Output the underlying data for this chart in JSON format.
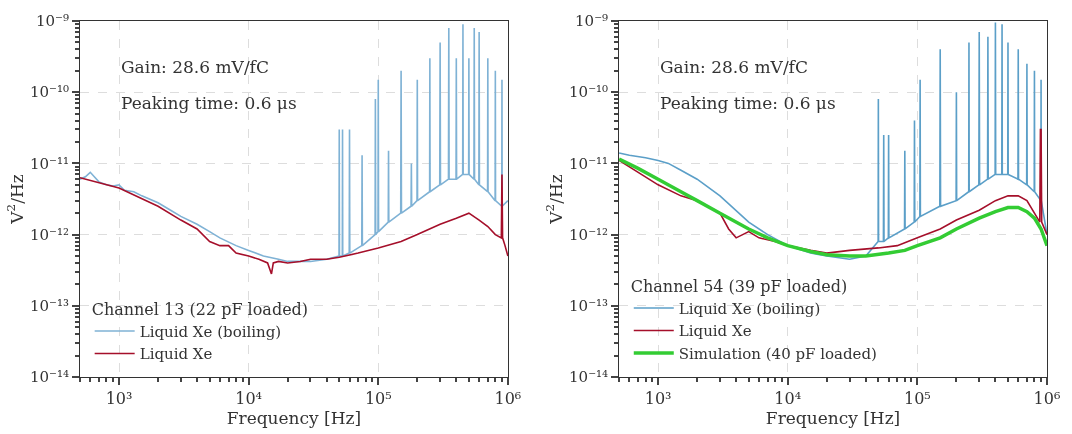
{
  "chart_data": [
    {
      "type": "line",
      "xlabel": "Frequency [Hz]",
      "ylabel": "V$^{2}$/Hz",
      "log": "xy",
      "grid": true,
      "legend": "bottom left",
      "legend_title": "Channel 13 (22 pF loaded)",
      "annotations": [
        "Gain: 28.6 mV/fC",
        "Peaking time: 0.6 μs"
      ],
      "xlim": [
        500,
        1000000
      ],
      "xticks": [
        {
          "value": 1000,
          "label": "10³"
        },
        {
          "value": 10000,
          "label": "10⁴"
        },
        {
          "value": 100000,
          "label": "10⁵"
        },
        {
          "value": 1000000,
          "label": "10⁶"
        }
      ],
      "ylim": [
        1e-14,
        1e-09
      ],
      "yticks": [
        {
          "value": 1e-14,
          "label": "10⁻¹⁴"
        },
        {
          "value": 1e-13,
          "label": "10⁻¹³"
        },
        {
          "value": 1e-12,
          "label": "10⁻¹²"
        },
        {
          "value": 1e-11,
          "label": "10⁻¹¹"
        },
        {
          "value": 1e-10,
          "label": "10⁻¹⁰"
        },
        {
          "value": 1e-09,
          "label": "10⁻⁹"
        }
      ],
      "series": [
        {
          "name": "Liquid Xe (boiling)",
          "color": "#7fb2d5",
          "x": [
            500,
            550,
            600,
            700,
            800,
            900,
            1000,
            1100,
            1300,
            1500,
            2000,
            2500,
            3000,
            4000,
            5000,
            6000,
            8000,
            10000,
            13000,
            17000,
            20000,
            30000,
            40000,
            49800,
            50000,
            50200,
            52800,
            53000,
            53200,
            59700,
            60000,
            60300,
            74600,
            75000,
            75400,
            94500,
            95000,
            95500,
            99500,
            100000,
            100500,
            119400,
            120000,
            120600,
            149000,
            150000,
            151000,
            179000,
            180000,
            181000,
            199000,
            200000,
            201000,
            249000,
            250000,
            251000,
            298000,
            300000,
            302000,
            348000,
            350000,
            352000,
            398000,
            400000,
            402000,
            448000,
            450000,
            452000,
            498000,
            500000,
            502000,
            547000,
            550000,
            553000,
            597000,
            600000,
            603000,
            697000,
            700000,
            703000,
            797000,
            800000,
            803000,
            897000,
            900000,
            903000,
            1000000
          ],
          "values": [
            6e-12,
            6.5e-12,
            7.5e-12,
            5.5e-12,
            5e-12,
            4.8e-12,
            5e-12,
            4.2e-12,
            4e-12,
            3.5e-12,
            2.8e-12,
            2.2e-12,
            1.8e-12,
            1.4e-12,
            1.1e-12,
            9e-13,
            7e-13,
            6e-13,
            5e-13,
            4.5e-13,
            4.2e-13,
            4.2e-13,
            4.5e-13,
            5e-13,
            3e-11,
            5e-13,
            5e-13,
            3e-11,
            5e-13,
            5.5e-13,
            3e-11,
            5.5e-13,
            7e-13,
            1.3e-11,
            7e-13,
            1e-12,
            8e-11,
            1e-12,
            1.1e-12,
            1.5e-10,
            1.1e-12,
            1.5e-12,
            1.5e-11,
            1.5e-12,
            2e-12,
            2e-10,
            2e-12,
            2.5e-12,
            1e-11,
            2.5e-12,
            3e-12,
            1.5e-10,
            3e-12,
            4e-12,
            3e-10,
            4e-12,
            5e-12,
            5e-10,
            5e-12,
            6e-12,
            8e-10,
            6e-12,
            6e-12,
            3e-10,
            6e-12,
            7e-12,
            9e-10,
            7e-12,
            7e-12,
            3e-10,
            7e-12,
            6e-12,
            8e-10,
            6e-12,
            5e-12,
            7e-10,
            5e-12,
            4e-12,
            3e-10,
            4e-12,
            3e-12,
            2e-10,
            3e-12,
            2.5e-12,
            1.5e-10,
            2.5e-12,
            3e-12
          ]
        },
        {
          "name": "Liquid Xe",
          "color": "#a50f2a",
          "x": [
            500,
            1000,
            2000,
            3000,
            4000,
            5000,
            6000,
            7000,
            8000,
            10000,
            12000,
            14000,
            15000,
            15500,
            17000,
            20000,
            25000,
            30000,
            40000,
            50000,
            70000,
            100000,
            150000,
            200000,
            300000,
            400000,
            500000,
            600000,
            700000,
            800000,
            890000,
            900000,
            910000,
            950000,
            1000000
          ],
          "values": [
            6.3e-12,
            4.5e-12,
            2.5e-12,
            1.6e-12,
            1.2e-12,
            8e-13,
            7e-13,
            7e-13,
            5.5e-13,
            5e-13,
            4.5e-13,
            4e-13,
            2.8e-13,
            4e-13,
            4.2e-13,
            4e-13,
            4.2e-13,
            4.5e-13,
            4.5e-13,
            4.8e-13,
            5.5e-13,
            6.5e-13,
            8e-13,
            1e-12,
            1.4e-12,
            1.7e-12,
            2e-12,
            1.6e-12,
            1.3e-12,
            1e-12,
            9e-13,
            7e-12,
            9e-13,
            7e-13,
            5e-13
          ]
        }
      ]
    },
    {
      "type": "line",
      "xlabel": "Frequency [Hz]",
      "ylabel": "V$^{2}$/Hz",
      "log": "xy",
      "grid": true,
      "legend": "bottom left",
      "legend_title": "Channel 54 (39 pF loaded)",
      "annotations": [
        "Gain: 28.6 mV/fC",
        "Peaking time: 0.6 μs"
      ],
      "xlim": [
        500,
        1000000
      ],
      "xticks": [
        {
          "value": 1000,
          "label": "10³"
        },
        {
          "value": 10000,
          "label": "10⁴"
        },
        {
          "value": 100000,
          "label": "10⁵"
        },
        {
          "value": 1000000,
          "label": "10⁶"
        }
      ],
      "ylim": [
        1e-14,
        1e-09
      ],
      "yticks": [
        {
          "value": 1e-14,
          "label": "10⁻¹⁴"
        },
        {
          "value": 1e-13,
          "label": "10⁻¹³"
        },
        {
          "value": 1e-12,
          "label": "10⁻¹²"
        },
        {
          "value": 1e-11,
          "label": "10⁻¹¹"
        },
        {
          "value": 1e-10,
          "label": "10⁻¹⁰"
        },
        {
          "value": 1e-09,
          "label": "10⁻⁹"
        }
      ],
      "series": [
        {
          "name": "Liquid Xe (boiling)",
          "color": "#5b9fc8",
          "x": [
            500,
            600,
            800,
            1000,
            1200,
            1500,
            2000,
            3000,
            5000,
            7000,
            10000,
            15000,
            20000,
            30000,
            40000,
            49800,
            50000,
            50200,
            54700,
            55000,
            55300,
            59700,
            60000,
            60300,
            79600,
            80000,
            80400,
            94500,
            95000,
            95500,
            104500,
            105000,
            105500,
            149000,
            150000,
            151000,
            199000,
            200000,
            201000,
            249000,
            250000,
            251000,
            298000,
            300000,
            302000,
            348000,
            350000,
            352000,
            398000,
            400000,
            402000,
            448000,
            450000,
            452000,
            498000,
            500000,
            502000,
            597000,
            600000,
            603000,
            697000,
            700000,
            703000,
            797000,
            800000,
            803000,
            897000,
            900000,
            903000,
            1000000
          ],
          "values": [
            1.4e-11,
            1.3e-11,
            1.2e-11,
            1.1e-11,
            1e-11,
            8e-12,
            6e-12,
            3.5e-12,
            1.5e-12,
            1e-12,
            7e-13,
            5.5e-13,
            5e-13,
            4.5e-13,
            5e-13,
            8e-13,
            8e-11,
            8e-13,
            8e-13,
            2.5e-11,
            8e-13,
            9e-13,
            2.5e-11,
            9e-13,
            1.2e-12,
            1.5e-11,
            1.2e-12,
            1.5e-12,
            4e-11,
            1.5e-12,
            1.8e-12,
            1.5e-10,
            1.8e-12,
            2.5e-12,
            4e-10,
            2.5e-12,
            3e-12,
            1e-10,
            3e-12,
            4e-12,
            5e-10,
            4e-12,
            5e-12,
            7e-10,
            5e-12,
            6e-12,
            6e-10,
            6e-12,
            7e-12,
            9.5e-10,
            7e-12,
            7e-12,
            9e-10,
            7e-12,
            7e-12,
            5e-10,
            7e-12,
            6e-12,
            4e-10,
            6e-12,
            5e-12,
            2.5e-10,
            5e-12,
            4e-12,
            2e-10,
            4e-12,
            3e-12,
            1.5e-10,
            3e-12,
            1e-12
          ]
        },
        {
          "name": "Liquid Xe",
          "color": "#a50f2a",
          "x": [
            500,
            1000,
            1500,
            2000,
            3000,
            3500,
            4000,
            5000,
            6000,
            8000,
            10000,
            15000,
            20000,
            30000,
            50000,
            70000,
            100000,
            150000,
            200000,
            300000,
            400000,
            500000,
            600000,
            700000,
            800000,
            880000,
            890000,
            900000,
            910000,
            1000000
          ],
          "values": [
            1.1e-11,
            5e-12,
            3.5e-12,
            3e-12,
            2e-12,
            1.2e-12,
            9e-13,
            1.1e-12,
            9e-13,
            8e-13,
            7e-13,
            6e-13,
            5.5e-13,
            6e-13,
            6.5e-13,
            7e-13,
            9e-13,
            1.2e-12,
            1.6e-12,
            2.2e-12,
            3e-12,
            3.5e-12,
            3.5e-12,
            3e-12,
            2e-12,
            1.5e-12,
            3e-11,
            3e-11,
            1.5e-12,
            1e-12
          ]
        },
        {
          "name": "Simulation (40 pF loaded)",
          "color": "#33cc33",
          "x": [
            500,
            700,
            1000,
            1500,
            2000,
            3000,
            5000,
            7000,
            10000,
            15000,
            20000,
            30000,
            40000,
            60000,
            80000,
            100000,
            150000,
            200000,
            300000,
            400000,
            500000,
            600000,
            700000,
            800000,
            900000,
            1000000
          ],
          "values": [
            1.15e-11,
            8.5e-12,
            6e-12,
            4e-12,
            3e-12,
            2e-12,
            1.2e-12,
            9e-13,
            7e-13,
            5.8e-13,
            5.2e-13,
            5e-13,
            5e-13,
            5.5e-13,
            6e-13,
            7e-13,
            9e-13,
            1.2e-12,
            1.7e-12,
            2.1e-12,
            2.4e-12,
            2.4e-12,
            2.1e-12,
            1.7e-12,
            1.2e-12,
            7e-13
          ]
        }
      ]
    }
  ]
}
